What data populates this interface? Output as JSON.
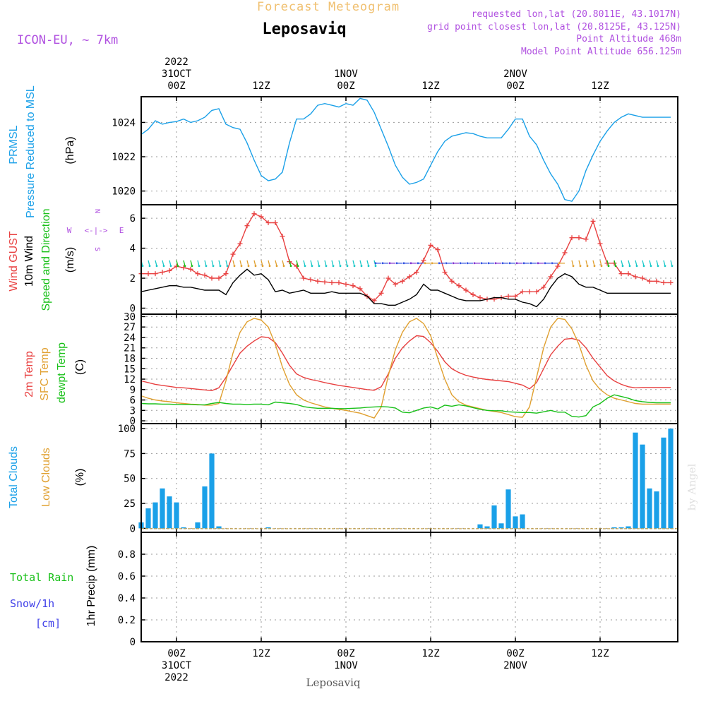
{
  "header": {
    "top_title": "Forecast Meteogram",
    "station": "Leposaviq",
    "model": "ICON-EU, ~ 7km",
    "requested": "requested lon,lat (20.8011E, 43.1017N)",
    "grid_point": "grid point closest lon,lat (20.8125E, 43.125N)",
    "point_alt": "Point Altitude 468m",
    "model_alt": "Model Point Altitude 656.125m",
    "footer_station": "Leposaviq",
    "credit": "by Angel"
  },
  "time_axis": {
    "top": [
      {
        "lines": [
          "2022",
          "31OCT",
          "00Z"
        ],
        "hour": 0
      },
      {
        "lines": [
          "12Z"
        ],
        "hour": 12
      },
      {
        "lines": [
          "1NOV",
          "00Z"
        ],
        "hour": 24
      },
      {
        "lines": [
          "12Z"
        ],
        "hour": 36
      },
      {
        "lines": [
          "2NOV",
          "00Z"
        ],
        "hour": 48
      },
      {
        "lines": [
          "12Z"
        ],
        "hour": 60
      }
    ],
    "bottom": [
      {
        "lines": [
          "00Z",
          "31OCT",
          "2022"
        ],
        "hour": 0
      },
      {
        "lines": [
          "12Z"
        ],
        "hour": 12
      },
      {
        "lines": [
          "00Z",
          "1NOV"
        ],
        "hour": 24
      },
      {
        "lines": [
          "12Z"
        ],
        "hour": 36
      },
      {
        "lines": [
          "00Z",
          "2NOV"
        ],
        "hour": 48
      },
      {
        "lines": [
          "12Z"
        ],
        "hour": 60
      }
    ],
    "hour_range": [
      -5,
      71
    ]
  },
  "colors": {
    "pressure": "#1aa0e8",
    "gust": "#e84040",
    "wind": "#000000",
    "direction": "#18c018",
    "temp2m": "#e84040",
    "sfc": "#e0a030",
    "dewpt": "#18c018",
    "clouds": "#1aa0e8",
    "lowclouds": "#e0a030",
    "purple": "#b050e0",
    "rain": "#18c018",
    "snow": "#4040e8"
  },
  "panels": {
    "pressure": {
      "labels": [
        "PRMSL",
        "Pressure Reduced to MSL"
      ],
      "unit": "(hPa)"
    },
    "wind": {
      "labels": [
        "Wind GUST",
        "10m Wind",
        "Speed and Direction"
      ],
      "unit": "(m/s)",
      "compass": {
        "n": "N",
        "s": "S",
        "w": "W",
        "e": "E",
        "arrows": "<-|->"
      }
    },
    "temp": {
      "labels": [
        "2m Temp",
        "SFC Temp",
        "dewpt Temp"
      ],
      "unit": "(C)"
    },
    "clouds": {
      "labels": [
        "Total Clouds",
        "Low Clouds"
      ],
      "unit": "(%)"
    },
    "precip": {
      "labels": [
        "Total  Rain",
        "Snow/1h",
        "[cm]"
      ],
      "unit": "1hr Precip (mm)"
    }
  },
  "chart_data": [
    {
      "type": "line",
      "id": "pressure",
      "ylim": [
        1019.2,
        1025.5
      ],
      "yticks": [
        1020,
        1022,
        1024
      ],
      "x": [
        -5,
        -4,
        -3,
        -2,
        -1,
        0,
        1,
        2,
        3,
        4,
        5,
        6,
        7,
        8,
        9,
        10,
        11,
        12,
        13,
        14,
        15,
        16,
        17,
        18,
        19,
        20,
        21,
        22,
        23,
        24,
        25,
        26,
        27,
        28,
        29,
        30,
        31,
        32,
        33,
        34,
        35,
        36,
        37,
        38,
        39,
        40,
        41,
        42,
        43,
        44,
        45,
        46,
        47,
        48,
        49,
        50,
        51,
        52,
        53,
        54,
        55,
        56,
        57,
        58,
        59,
        60,
        61,
        62,
        63,
        64,
        65,
        66,
        67,
        68,
        69,
        70
      ],
      "series": [
        {
          "values": [
            1023.3,
            1023.6,
            1024.1,
            1023.9,
            1024.0,
            1024.05,
            1024.2,
            1024.0,
            1024.1,
            1024.3,
            1024.7,
            1024.8,
            1023.9,
            1023.7,
            1023.6,
            1022.8,
            1021.8,
            1020.9,
            1020.6,
            1020.7,
            1021.1,
            1022.8,
            1024.2,
            1024.2,
            1024.5,
            1025.0,
            1025.1,
            1025.0,
            1024.9,
            1025.1,
            1025.0,
            1025.4,
            1025.3,
            1024.6,
            1023.6,
            1022.6,
            1021.5,
            1020.8,
            1020.4,
            1020.5,
            1020.7,
            1021.5,
            1022.3,
            1022.9,
            1023.2,
            1023.3,
            1023.4,
            1023.35,
            1023.2,
            1023.1,
            1023.1,
            1023.1,
            1023.6,
            1024.2,
            1024.2,
            1023.2,
            1022.7,
            1021.8,
            1021.0,
            1020.4,
            1019.5,
            1019.4,
            1020.0,
            1021.2,
            1022.1,
            1022.9,
            1023.5,
            1024.0,
            1024.3,
            1024.5,
            1024.4,
            1024.3,
            1024.3,
            1024.3,
            1024.3,
            1024.3
          ]
        }
      ]
    },
    {
      "type": "line",
      "id": "wind",
      "ylim": [
        -0.4,
        6.9
      ],
      "yticks": [
        0,
        2,
        4,
        6
      ],
      "x": [
        -5,
        -4,
        -3,
        -2,
        -1,
        0,
        1,
        2,
        3,
        4,
        5,
        6,
        7,
        8,
        9,
        10,
        11,
        12,
        13,
        14,
        15,
        16,
        17,
        18,
        19,
        20,
        21,
        22,
        23,
        24,
        25,
        26,
        27,
        28,
        29,
        30,
        31,
        32,
        33,
        34,
        35,
        36,
        37,
        38,
        39,
        40,
        41,
        42,
        43,
        44,
        45,
        46,
        47,
        48,
        49,
        50,
        51,
        52,
        53,
        54,
        55,
        56,
        57,
        58,
        59,
        60,
        61,
        62,
        63,
        64,
        65,
        66,
        67,
        68,
        69,
        70
      ],
      "series": [
        {
          "name": "Wind GUST",
          "values": [
            2.3,
            2.3,
            2.3,
            2.4,
            2.5,
            2.8,
            2.7,
            2.6,
            2.3,
            2.2,
            2.0,
            2.0,
            2.3,
            3.6,
            4.3,
            5.5,
            6.3,
            6.1,
            5.7,
            5.7,
            4.8,
            3.1,
            2.8,
            2.0,
            1.9,
            1.8,
            1.75,
            1.7,
            1.7,
            1.6,
            1.5,
            1.3,
            0.8,
            0.5,
            1.0,
            2.0,
            1.6,
            1.8,
            2.1,
            2.4,
            3.2,
            4.2,
            3.9,
            2.4,
            1.8,
            1.5,
            1.2,
            0.9,
            0.7,
            0.6,
            0.6,
            0.7,
            0.8,
            0.8,
            1.1,
            1.1,
            1.1,
            1.4,
            2.1,
            2.8,
            3.7,
            4.7,
            4.7,
            4.6,
            5.8,
            4.3,
            3.0,
            3.0,
            2.3,
            2.3,
            2.1,
            2.0,
            1.8,
            1.8,
            1.7,
            1.7
          ]
        },
        {
          "name": "10m Wind",
          "values": [
            1.1,
            1.2,
            1.3,
            1.4,
            1.5,
            1.5,
            1.4,
            1.4,
            1.3,
            1.2,
            1.2,
            1.2,
            0.9,
            1.7,
            2.2,
            2.6,
            2.2,
            2.3,
            1.9,
            1.1,
            1.2,
            1.0,
            1.1,
            1.2,
            1.0,
            1.0,
            1.0,
            1.1,
            1.0,
            1.0,
            1.0,
            1.0,
            0.8,
            0.3,
            0.3,
            0.2,
            0.2,
            0.4,
            0.6,
            0.9,
            1.6,
            1.2,
            1.2,
            1.0,
            0.8,
            0.6,
            0.5,
            0.5,
            0.5,
            0.6,
            0.7,
            0.7,
            0.6,
            0.6,
            0.4,
            0.3,
            0.1,
            0.6,
            1.4,
            2.0,
            2.3,
            2.1,
            1.6,
            1.4,
            1.4,
            1.2,
            1.0,
            1.0,
            1.0,
            1.0,
            1.0,
            1.0,
            1.0,
            1.0,
            1.0,
            1.0
          ]
        }
      ],
      "direction_row_y": 3.0
    },
    {
      "type": "line",
      "id": "temp",
      "ylim": [
        -0.8,
        30.7
      ],
      "yticks": [
        0,
        3,
        6,
        9,
        12,
        15,
        18,
        21,
        24,
        27,
        30
      ],
      "x": [
        -5,
        -4,
        -3,
        -2,
        -1,
        0,
        1,
        2,
        3,
        4,
        5,
        6,
        7,
        8,
        9,
        10,
        11,
        12,
        13,
        14,
        15,
        16,
        17,
        18,
        19,
        20,
        21,
        22,
        23,
        24,
        25,
        26,
        27,
        28,
        29,
        30,
        31,
        32,
        33,
        34,
        35,
        36,
        37,
        38,
        39,
        40,
        41,
        42,
        43,
        44,
        45,
        46,
        47,
        48,
        49,
        50,
        51,
        52,
        53,
        54,
        55,
        56,
        57,
        58,
        59,
        60,
        61,
        62,
        63,
        64,
        65,
        66,
        67,
        68,
        69,
        70
      ],
      "series": [
        {
          "name": "2m Temp",
          "values": [
            11.5,
            11.0,
            10.5,
            10.2,
            9.9,
            9.6,
            9.5,
            9.3,
            9.1,
            8.9,
            8.7,
            9.5,
            12.5,
            16.0,
            19.5,
            21.5,
            23.0,
            24.2,
            24.0,
            22.5,
            19.5,
            16.0,
            13.5,
            12.5,
            11.9,
            11.5,
            11.0,
            10.6,
            10.2,
            9.9,
            9.6,
            9.3,
            9.0,
            8.8,
            9.8,
            13.5,
            18.0,
            21.0,
            23.0,
            24.5,
            24.3,
            22.5,
            20.0,
            17.0,
            15.0,
            13.9,
            13.1,
            12.6,
            12.2,
            11.9,
            11.7,
            11.5,
            11.3,
            10.8,
            10.3,
            9.2,
            11.0,
            15.0,
            19.0,
            21.5,
            23.5,
            23.7,
            23.2,
            21.0,
            18.0,
            15.5,
            13.0,
            11.5,
            10.5,
            9.8,
            9.5,
            9.6,
            9.6,
            9.6,
            9.6,
            9.6
          ]
        },
        {
          "name": "SFC Temp",
          "values": [
            7.2,
            6.5,
            6.0,
            5.7,
            5.5,
            5.2,
            5.0,
            4.8,
            4.7,
            4.5,
            4.5,
            5.0,
            11.5,
            19.5,
            25.5,
            28.5,
            29.5,
            29.0,
            27.0,
            22.0,
            15.5,
            10.5,
            7.5,
            6.0,
            5.2,
            4.6,
            4.0,
            3.6,
            3.3,
            3.0,
            2.6,
            2.2,
            1.5,
            0.8,
            4.0,
            13.0,
            20.5,
            25.5,
            28.5,
            29.5,
            28.0,
            24.5,
            18.0,
            12.0,
            7.5,
            5.5,
            4.5,
            4.0,
            3.5,
            3.0,
            2.7,
            2.4,
            1.8,
            1.2,
            1.0,
            4.0,
            12.5,
            21.0,
            27.0,
            29.5,
            29.2,
            26.5,
            22.0,
            16.0,
            11.5,
            9.0,
            7.5,
            6.5,
            6.0,
            5.5,
            5.0,
            4.8,
            4.8,
            4.8,
            4.8,
            4.8
          ]
        },
        {
          "name": "dewpt Temp",
          "values": [
            5.0,
            4.9,
            4.9,
            4.8,
            4.8,
            4.7,
            4.7,
            4.7,
            4.6,
            4.6,
            5.0,
            5.3,
            5.0,
            4.8,
            4.8,
            4.7,
            4.8,
            4.8,
            4.6,
            5.4,
            5.2,
            5.0,
            4.7,
            4.1,
            3.8,
            3.6,
            3.6,
            3.6,
            3.5,
            3.5,
            3.6,
            3.7,
            3.9,
            4.0,
            4.1,
            4.0,
            3.7,
            2.5,
            2.3,
            3.0,
            3.7,
            4.0,
            3.4,
            4.5,
            4.2,
            4.6,
            4.3,
            3.8,
            3.3,
            3.0,
            2.9,
            2.9,
            2.6,
            2.5,
            2.4,
            2.4,
            2.2,
            2.6,
            3.0,
            2.5,
            2.5,
            1.3,
            1.1,
            1.5,
            4.0,
            5.0,
            6.5,
            7.5,
            7.0,
            6.5,
            5.8,
            5.5,
            5.3,
            5.2,
            5.2,
            5.2
          ]
        }
      ]
    },
    {
      "type": "bar",
      "id": "clouds",
      "ylim": [
        -4,
        105
      ],
      "yticks": [
        0,
        25,
        50,
        75,
        100
      ],
      "x": [
        -5,
        -4,
        -3,
        -2,
        -1,
        0,
        1,
        2,
        3,
        4,
        5,
        6,
        7,
        8,
        9,
        10,
        11,
        12,
        13,
        14,
        15,
        16,
        17,
        18,
        19,
        20,
        21,
        22,
        23,
        24,
        25,
        26,
        27,
        28,
        29,
        30,
        31,
        32,
        33,
        34,
        35,
        36,
        37,
        38,
        39,
        40,
        41,
        42,
        43,
        44,
        45,
        46,
        47,
        48,
        49,
        50,
        51,
        52,
        53,
        54,
        55,
        56,
        57,
        58,
        59,
        60,
        61,
        62,
        63,
        64,
        65,
        66,
        67,
        68,
        69,
        70
      ],
      "series": [
        {
          "name": "Total Clouds",
          "values": [
            6,
            20,
            26,
            40,
            32,
            26,
            1,
            0,
            6,
            42,
            75,
            2,
            0,
            0,
            0,
            0,
            0,
            0,
            1,
            0,
            0,
            0,
            0,
            0,
            0,
            0,
            0,
            0,
            0,
            0,
            0,
            0,
            0,
            0,
            0,
            0,
            0,
            0,
            0,
            0,
            0,
            0,
            0,
            0,
            0,
            0,
            0,
            0,
            4,
            2,
            23,
            5,
            39,
            12,
            14,
            0,
            0,
            0,
            0,
            0,
            0,
            0,
            0,
            0,
            0,
            0,
            0,
            1,
            1,
            2,
            96,
            84,
            40,
            37,
            91,
            100
          ]
        },
        {
          "name": "Low Clouds",
          "values": [
            0,
            0,
            0,
            0,
            0,
            0,
            0,
            0,
            0,
            0,
            0,
            0,
            0,
            0,
            0,
            0,
            0,
            0,
            0,
            0,
            0,
            0,
            0,
            0,
            0,
            0,
            0,
            0,
            0,
            0,
            0,
            0,
            0,
            0,
            0,
            0,
            0,
            0,
            0,
            0,
            0,
            0,
            0,
            0,
            0,
            0,
            0,
            0,
            0,
            0,
            0,
            0,
            0,
            0,
            0,
            0,
            0,
            0,
            0,
            0,
            0,
            0,
            0,
            0,
            0,
            0,
            0,
            0,
            0,
            0,
            0,
            0,
            0,
            0,
            0,
            0
          ]
        }
      ]
    },
    {
      "type": "bar",
      "id": "precip",
      "ylim": [
        0,
        1.0
      ],
      "yticks": [
        0,
        0.2,
        0.4,
        0.6,
        0.8
      ],
      "x": [
        -5,
        70
      ],
      "series": [
        {
          "name": "Total Rain",
          "values": [
            0,
            0
          ]
        }
      ]
    }
  ]
}
